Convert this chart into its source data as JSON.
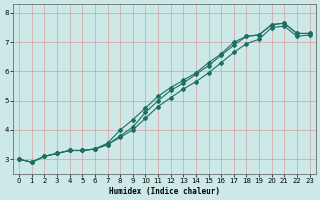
{
  "title": "",
  "xlabel": "Humidex (Indice chaleur)",
  "ylabel": "",
  "bg_color": "#cce9e8",
  "grid_color": "#d4a0a0",
  "line_color": "#1e6e62",
  "marker_color": "#1e6e62",
  "xlim": [
    -0.5,
    23.5
  ],
  "ylim": [
    2.5,
    8.3
  ],
  "xticks": [
    0,
    1,
    2,
    3,
    4,
    5,
    6,
    7,
    8,
    9,
    10,
    11,
    12,
    13,
    14,
    15,
    16,
    17,
    18,
    19,
    20,
    21,
    22,
    23
  ],
  "yticks": [
    3,
    4,
    5,
    6,
    7,
    8
  ],
  "line1_x": [
    0,
    1,
    2,
    3,
    4,
    5,
    6,
    7,
    8,
    9,
    10,
    11,
    12,
    13,
    14,
    15,
    16,
    17,
    18,
    19,
    20,
    21,
    22,
    23
  ],
  "line1_y": [
    3.0,
    2.9,
    3.1,
    3.2,
    3.3,
    3.3,
    3.35,
    3.5,
    3.8,
    4.1,
    4.6,
    5.0,
    5.35,
    5.6,
    5.9,
    6.2,
    6.55,
    6.9,
    7.2,
    7.25,
    7.6,
    7.65,
    7.3,
    7.3
  ],
  "line2_x": [
    0,
    1,
    2,
    3,
    4,
    5,
    6,
    7,
    8,
    9,
    10,
    11,
    12,
    13,
    14,
    15,
    16,
    17,
    18,
    19,
    20,
    21,
    22,
    23
  ],
  "line2_y": [
    3.0,
    2.9,
    3.1,
    3.2,
    3.3,
    3.3,
    3.35,
    3.55,
    4.0,
    4.35,
    4.75,
    5.15,
    5.45,
    5.7,
    5.95,
    6.3,
    6.6,
    7.0,
    7.2,
    7.25,
    7.6,
    7.65,
    7.3,
    7.3
  ],
  "line3_x": [
    0,
    1,
    2,
    3,
    4,
    5,
    6,
    7,
    8,
    9,
    10,
    11,
    12,
    13,
    14,
    15,
    16,
    17,
    18,
    19,
    20,
    21,
    22,
    23
  ],
  "line3_y": [
    3.0,
    2.9,
    3.1,
    3.2,
    3.3,
    3.3,
    3.35,
    3.5,
    3.75,
    4.0,
    4.4,
    4.8,
    5.1,
    5.4,
    5.65,
    5.95,
    6.3,
    6.65,
    6.95,
    7.1,
    7.5,
    7.55,
    7.2,
    7.25
  ]
}
